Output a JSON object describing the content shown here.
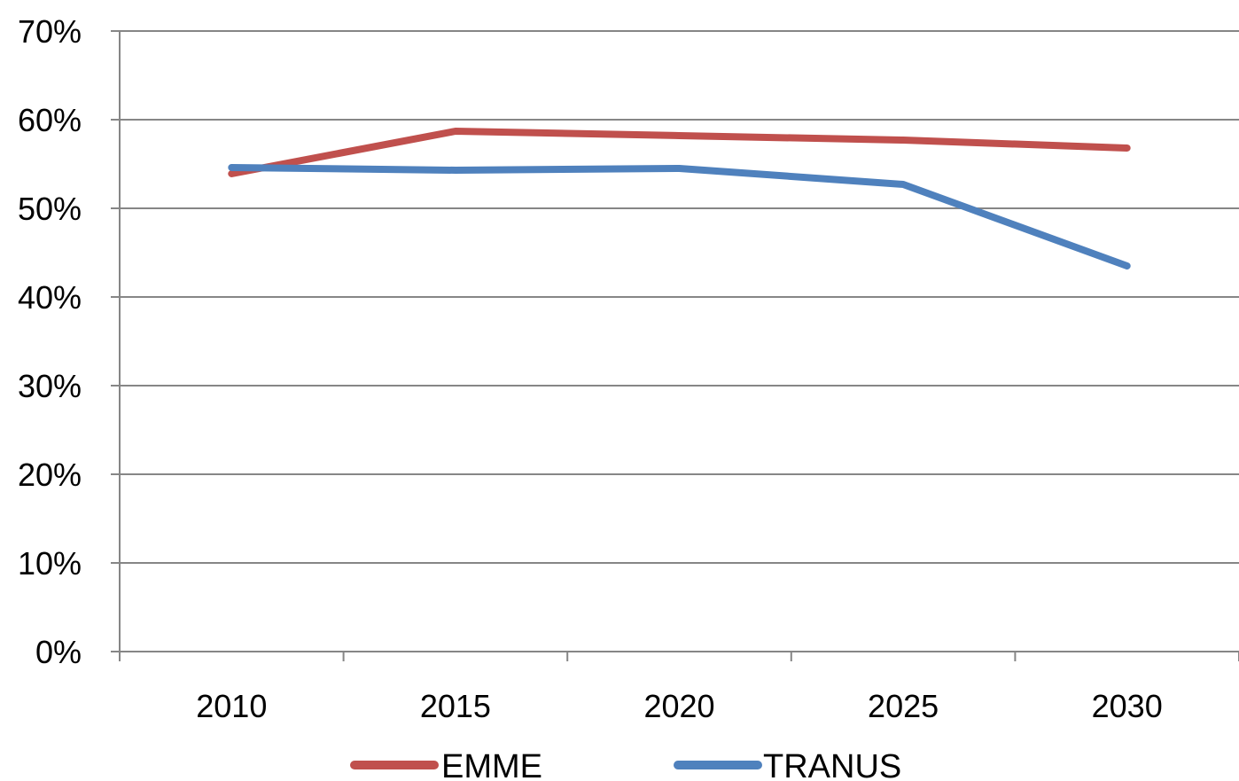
{
  "chart_data": {
    "type": "line",
    "title": "",
    "xlabel": "",
    "ylabel": "",
    "categories": [
      "2010",
      "2015",
      "2020",
      "2025",
      "2030"
    ],
    "ylim": [
      0,
      0.7
    ],
    "y_ticks": [
      0,
      0.1,
      0.2,
      0.3,
      0.4,
      0.5,
      0.6,
      0.7
    ],
    "y_tick_labels": [
      "0%",
      "10%",
      "20%",
      "30%",
      "40%",
      "50%",
      "60%",
      "70%"
    ],
    "grid": "horizontal",
    "legend_position": "bottom",
    "series": [
      {
        "name": "EMME",
        "color": "#c0504d",
        "values": [
          0.539,
          0.587,
          0.582,
          0.577,
          0.568
        ]
      },
      {
        "name": "TRANUS",
        "color": "#4f81bd",
        "values": [
          0.546,
          0.543,
          0.545,
          0.527,
          0.435
        ]
      }
    ]
  }
}
